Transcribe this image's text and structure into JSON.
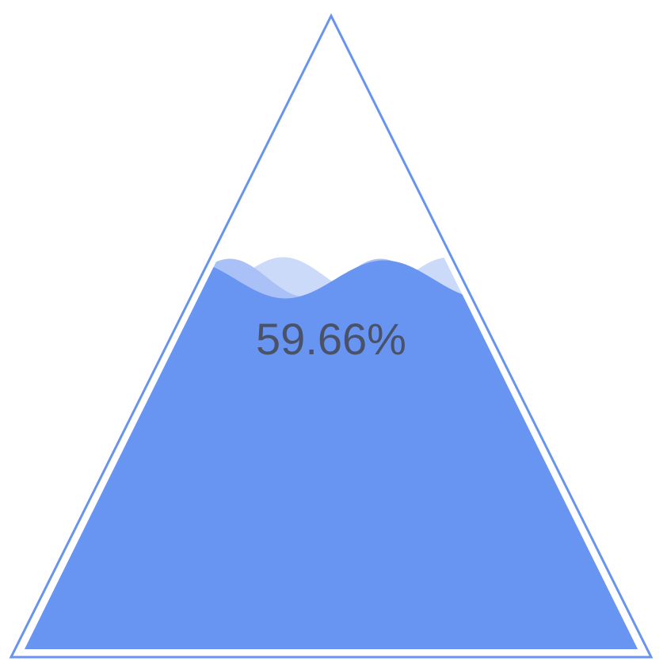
{
  "chart_data": {
    "type": "liquidfill",
    "shape": "triangle",
    "value": 0.5966,
    "label": "59.66%",
    "colors": {
      "outline": "#6894f0",
      "fill": "#6995f2",
      "wave_back": "#a9c1f6",
      "wave_back_light": "#cbdaf9",
      "label": "#4a5268",
      "background": "#ffffff"
    }
  }
}
